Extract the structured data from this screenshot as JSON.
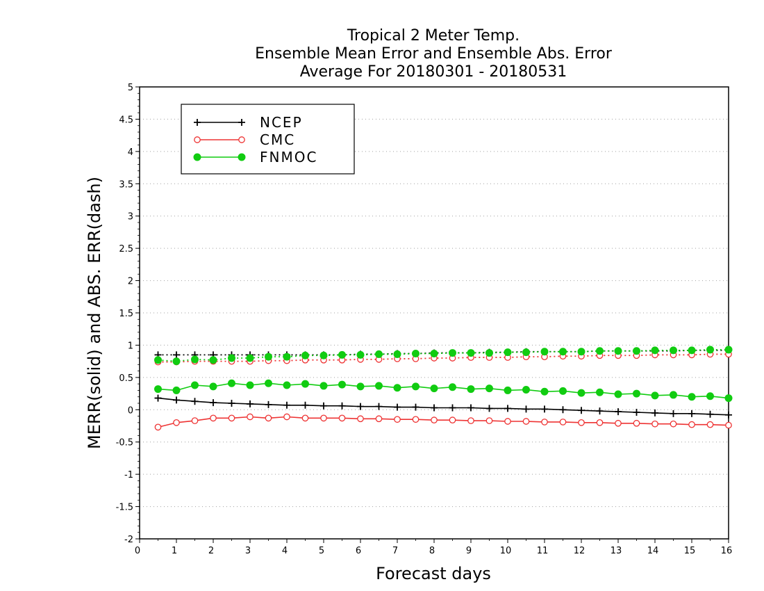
{
  "chart_data": {
    "type": "line",
    "title_lines": [
      "Tropical 2 Meter Temp.",
      "Ensemble Mean Error and Ensemble Abs. Error",
      "Average For 20180301 - 20180531"
    ],
    "xlabel": "Forecast days",
    "ylabel": "MERR(solid) and ABS. ERR(dash)",
    "xlim": [
      0,
      16
    ],
    "ylim": [
      -2,
      5
    ],
    "x_ticks": [
      "0",
      "1",
      "2",
      "3",
      "4",
      "5",
      "6",
      "7",
      "8",
      "9",
      "10",
      "11",
      "12",
      "13",
      "14",
      "15",
      "16"
    ],
    "y_ticks": [
      "5",
      "4.5",
      "4",
      "3.5",
      "3",
      "2.5",
      "2",
      "1.5",
      "1",
      "0.5",
      "0",
      "-0.5",
      "-1",
      "-1.5",
      "-2"
    ],
    "grid": "horizontal dotted",
    "legend_position": "top-left",
    "x": [
      0.5,
      1,
      1.5,
      2,
      2.5,
      3,
      3.5,
      4,
      4.5,
      5,
      5.5,
      6,
      6.5,
      7,
      7.5,
      8,
      8.5,
      9,
      9.5,
      10,
      10.5,
      11,
      11.5,
      12,
      12.5,
      13,
      13.5,
      14,
      14.5,
      15,
      15.5,
      16
    ],
    "series": [
      {
        "name": "NCEP",
        "color": "#000000",
        "marker": "plus",
        "merr": [
          0.18,
          0.15,
          0.13,
          0.11,
          0.1,
          0.09,
          0.08,
          0.07,
          0.07,
          0.06,
          0.06,
          0.05,
          0.05,
          0.04,
          0.04,
          0.03,
          0.03,
          0.03,
          0.02,
          0.02,
          0.01,
          0.01,
          0.0,
          -0.01,
          -0.02,
          -0.03,
          -0.04,
          -0.05,
          -0.06,
          -0.06,
          -0.07,
          -0.08
        ],
        "abs_err": [
          0.85,
          0.85,
          0.85,
          0.85,
          0.85,
          0.85,
          0.85,
          0.85,
          0.85,
          0.85,
          0.85,
          0.86,
          0.86,
          0.87,
          0.87,
          0.88,
          0.88,
          0.88,
          0.89,
          0.89,
          0.9,
          0.9,
          0.9,
          0.9,
          0.91,
          0.91,
          0.91,
          0.91,
          0.91,
          0.92,
          0.92,
          0.92
        ]
      },
      {
        "name": "CMC",
        "color": "#ee3333",
        "marker": "open-circle",
        "merr": [
          -0.27,
          -0.2,
          -0.17,
          -0.13,
          -0.13,
          -0.11,
          -0.13,
          -0.11,
          -0.13,
          -0.13,
          -0.13,
          -0.14,
          -0.14,
          -0.15,
          -0.15,
          -0.16,
          -0.16,
          -0.17,
          -0.17,
          -0.18,
          -0.18,
          -0.19,
          -0.19,
          -0.2,
          -0.2,
          -0.21,
          -0.21,
          -0.22,
          -0.22,
          -0.23,
          -0.23,
          -0.24
        ],
        "abs_err": [
          0.74,
          0.74,
          0.75,
          0.75,
          0.75,
          0.75,
          0.76,
          0.76,
          0.77,
          0.77,
          0.77,
          0.78,
          0.78,
          0.79,
          0.79,
          0.8,
          0.8,
          0.81,
          0.81,
          0.81,
          0.82,
          0.82,
          0.83,
          0.83,
          0.84,
          0.84,
          0.84,
          0.85,
          0.85,
          0.85,
          0.86,
          0.86
        ]
      },
      {
        "name": "FNMOC",
        "color": "#11cc11",
        "marker": "filled-circle",
        "merr": [
          0.32,
          0.3,
          0.38,
          0.36,
          0.41,
          0.38,
          0.41,
          0.38,
          0.4,
          0.37,
          0.39,
          0.36,
          0.37,
          0.34,
          0.36,
          0.33,
          0.35,
          0.32,
          0.33,
          0.3,
          0.31,
          0.28,
          0.29,
          0.26,
          0.27,
          0.24,
          0.25,
          0.22,
          0.23,
          0.2,
          0.21,
          0.18
        ],
        "abs_err": [
          0.77,
          0.75,
          0.78,
          0.77,
          0.8,
          0.8,
          0.82,
          0.82,
          0.84,
          0.84,
          0.85,
          0.85,
          0.86,
          0.86,
          0.87,
          0.87,
          0.88,
          0.88,
          0.88,
          0.89,
          0.89,
          0.9,
          0.9,
          0.9,
          0.91,
          0.91,
          0.91,
          0.92,
          0.92,
          0.92,
          0.93,
          0.93
        ]
      }
    ]
  }
}
